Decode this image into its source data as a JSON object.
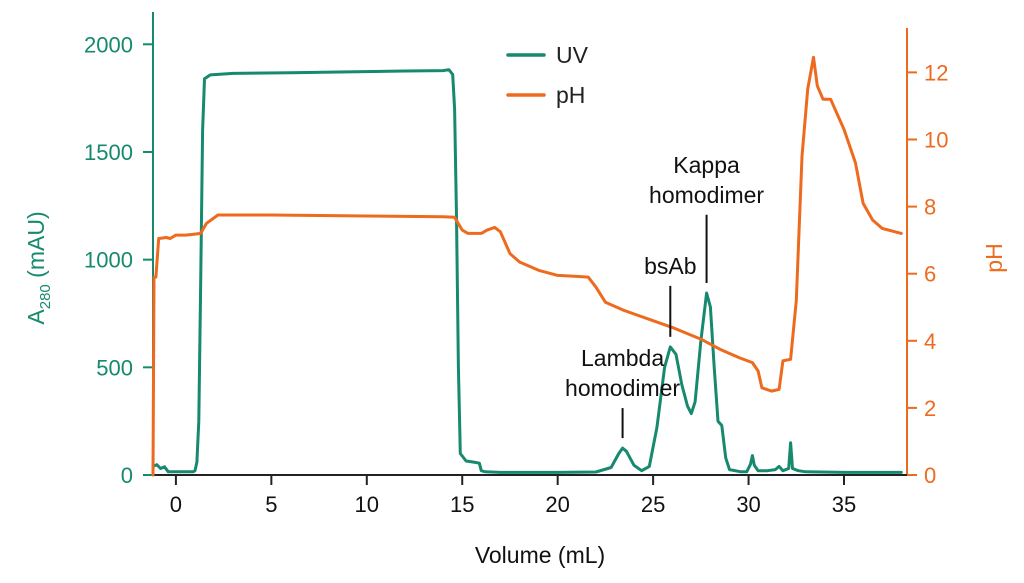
{
  "chart_data": {
    "type": "line",
    "xlabel": "Volume (mL)",
    "ylabel_left": "A",
    "ylabel_left_sub": "280",
    "ylabel_left_unit": " (mAU)",
    "ylabel_right": "pH",
    "xlim": [
      -1.2,
      38.3
    ],
    "ylim_left": [
      0,
      2150
    ],
    "ylim_right": [
      0,
      13.8
    ],
    "x_ticks": [
      0,
      5,
      10,
      15,
      20,
      25,
      30,
      35
    ],
    "y_left_ticks": [
      0,
      500,
      1000,
      1500,
      2000
    ],
    "y_right_ticks": [
      0,
      2,
      4,
      6,
      8,
      10,
      12
    ],
    "grid": false,
    "legend_position": "top-center",
    "colors": {
      "uv": "#16896e",
      "ph": "#ed6a1e"
    },
    "series": [
      {
        "name": "UV",
        "axis": "left",
        "points": [
          [
            -1.2,
            40
          ],
          [
            -1.0,
            48
          ],
          [
            -0.8,
            30
          ],
          [
            -0.6,
            38
          ],
          [
            -0.4,
            15
          ],
          [
            0,
            15
          ],
          [
            0.5,
            15
          ],
          [
            0.9,
            15
          ],
          [
            1.0,
            20
          ],
          [
            1.1,
            60
          ],
          [
            1.2,
            250
          ],
          [
            1.3,
            900
          ],
          [
            1.4,
            1600
          ],
          [
            1.5,
            1840
          ],
          [
            1.8,
            1858
          ],
          [
            3,
            1865
          ],
          [
            6,
            1868
          ],
          [
            9,
            1872
          ],
          [
            12,
            1876
          ],
          [
            14,
            1878
          ],
          [
            14.3,
            1882
          ],
          [
            14.5,
            1860
          ],
          [
            14.6,
            1700
          ],
          [
            14.7,
            1200
          ],
          [
            14.8,
            500
          ],
          [
            14.9,
            100
          ],
          [
            15.2,
            65
          ],
          [
            15.6,
            60
          ],
          [
            15.9,
            55
          ],
          [
            16.0,
            20
          ],
          [
            16.2,
            15
          ],
          [
            17,
            12
          ],
          [
            20,
            12
          ],
          [
            22,
            14
          ],
          [
            22.8,
            35
          ],
          [
            23.2,
            100
          ],
          [
            23.4,
            125
          ],
          [
            23.6,
            110
          ],
          [
            24.0,
            45
          ],
          [
            24.4,
            20
          ],
          [
            24.8,
            40
          ],
          [
            25.2,
            220
          ],
          [
            25.6,
            500
          ],
          [
            25.9,
            595
          ],
          [
            26.2,
            560
          ],
          [
            26.5,
            420
          ],
          [
            26.8,
            320
          ],
          [
            27.0,
            285
          ],
          [
            27.2,
            340
          ],
          [
            27.5,
            620
          ],
          [
            27.8,
            845
          ],
          [
            28.0,
            780
          ],
          [
            28.2,
            500
          ],
          [
            28.4,
            250
          ],
          [
            28.6,
            230
          ],
          [
            28.8,
            80
          ],
          [
            29.0,
            25
          ],
          [
            29.6,
            15
          ],
          [
            29.9,
            15
          ],
          [
            30.1,
            50
          ],
          [
            30.2,
            90
          ],
          [
            30.3,
            45
          ],
          [
            30.5,
            20
          ],
          [
            31.0,
            20
          ],
          [
            31.4,
            25
          ],
          [
            31.6,
            40
          ],
          [
            31.8,
            20
          ],
          [
            32.1,
            30
          ],
          [
            32.2,
            150
          ],
          [
            32.3,
            30
          ],
          [
            32.6,
            20
          ],
          [
            33,
            15
          ],
          [
            35,
            12
          ],
          [
            38,
            12
          ]
        ]
      },
      {
        "name": "pH",
        "axis": "right",
        "points": [
          [
            -1.2,
            0
          ],
          [
            -1.15,
            5.9
          ],
          [
            -1.05,
            5.9
          ],
          [
            -0.9,
            7.05
          ],
          [
            -0.5,
            7.08
          ],
          [
            -0.3,
            7.05
          ],
          [
            0,
            7.15
          ],
          [
            0.5,
            7.15
          ],
          [
            1,
            7.18
          ],
          [
            1.3,
            7.2
          ],
          [
            1.6,
            7.5
          ],
          [
            2.2,
            7.75
          ],
          [
            5,
            7.75
          ],
          [
            10,
            7.72
          ],
          [
            14,
            7.7
          ],
          [
            14.6,
            7.68
          ],
          [
            15.0,
            7.3
          ],
          [
            15.3,
            7.2
          ],
          [
            16.0,
            7.2
          ],
          [
            16.3,
            7.3
          ],
          [
            16.7,
            7.38
          ],
          [
            17.0,
            7.25
          ],
          [
            17.5,
            6.6
          ],
          [
            18,
            6.35
          ],
          [
            19,
            6.1
          ],
          [
            20,
            5.95
          ],
          [
            21,
            5.92
          ],
          [
            21.6,
            5.9
          ],
          [
            22.0,
            5.6
          ],
          [
            22.5,
            5.15
          ],
          [
            23.5,
            4.9
          ],
          [
            25,
            4.6
          ],
          [
            26,
            4.4
          ],
          [
            27.5,
            4.05
          ],
          [
            28.5,
            3.75
          ],
          [
            29.5,
            3.5
          ],
          [
            30.2,
            3.35
          ],
          [
            30.5,
            3.1
          ],
          [
            30.7,
            2.6
          ],
          [
            31.2,
            2.5
          ],
          [
            31.6,
            2.55
          ],
          [
            31.8,
            3.4
          ],
          [
            32.2,
            3.45
          ],
          [
            32.5,
            5.2
          ],
          [
            32.8,
            9.5
          ],
          [
            33.1,
            11.5
          ],
          [
            33.4,
            12.45
          ],
          [
            33.6,
            11.6
          ],
          [
            33.9,
            11.2
          ],
          [
            34.3,
            11.2
          ],
          [
            35,
            10.3
          ],
          [
            35.6,
            9.3
          ],
          [
            36,
            8.1
          ],
          [
            36.5,
            7.6
          ],
          [
            37,
            7.35
          ],
          [
            38,
            7.2
          ]
        ]
      }
    ],
    "legend": [
      {
        "label": "UV",
        "series": "UV"
      },
      {
        "label": "pH",
        "series": "pH"
      }
    ],
    "annotations": [
      {
        "lines": [
          "Kappa",
          "homodimer"
        ],
        "x": 27.8,
        "y": 845
      },
      {
        "lines": [
          "bsAb"
        ],
        "x": 25.9,
        "y": 595
      },
      {
        "lines": [
          "Lambda",
          "homodimer"
        ],
        "x": 23.4,
        "y": 125
      }
    ]
  }
}
